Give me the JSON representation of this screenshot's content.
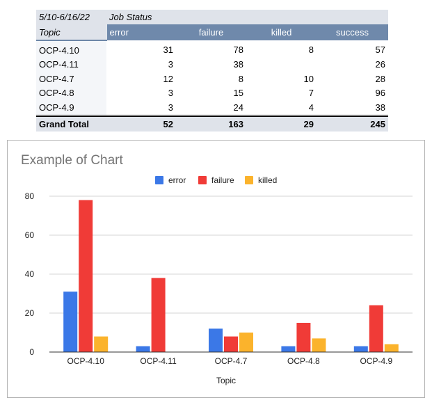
{
  "pivot": {
    "date_range": "5/10-6/16/22",
    "group_header": "Job Status",
    "row_header": "Topic",
    "columns": [
      "error",
      "failure",
      "killed",
      "success"
    ],
    "rows": [
      {
        "label": "OCP-4.10",
        "values": [
          "31",
          "78",
          "8",
          "57"
        ]
      },
      {
        "label": "OCP-4.11",
        "values": [
          "3",
          "38",
          "",
          "26"
        ]
      },
      {
        "label": "OCP-4.7",
        "values": [
          "12",
          "8",
          "10",
          "28"
        ]
      },
      {
        "label": "OCP-4.8",
        "values": [
          "3",
          "15",
          "7",
          "96"
        ]
      },
      {
        "label": "OCP-4.9",
        "values": [
          "3",
          "24",
          "4",
          "38"
        ]
      }
    ],
    "total_label": "Grand Total",
    "totals": [
      "52",
      "163",
      "29",
      "245"
    ]
  },
  "chart_data": {
    "type": "bar",
    "title": "Example of Chart",
    "xlabel": "Topic",
    "ylabel": "",
    "categories": [
      "OCP-4.10",
      "OCP-4.11",
      "OCP-4.7",
      "OCP-4.8",
      "OCP-4.9"
    ],
    "series": [
      {
        "name": "error",
        "color": "#3b78e7",
        "values": [
          31,
          3,
          12,
          3,
          3
        ]
      },
      {
        "name": "failure",
        "color": "#f03b37",
        "values": [
          78,
          38,
          8,
          15,
          24
        ]
      },
      {
        "name": "killed",
        "color": "#fbb32c",
        "values": [
          8,
          0,
          10,
          7,
          4
        ]
      }
    ],
    "ylim": [
      0,
      80
    ],
    "yticks": [
      0,
      20,
      40,
      60,
      80
    ],
    "legend_position": "top-center",
    "grid": true
  }
}
